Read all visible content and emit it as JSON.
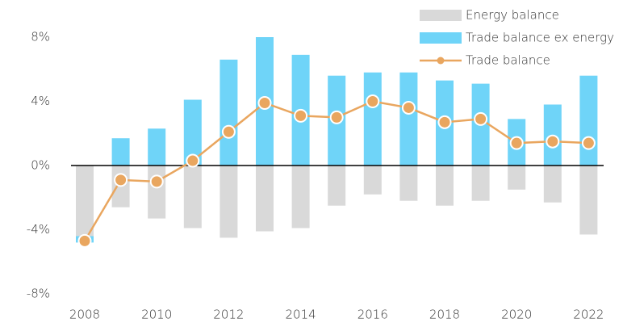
{
  "chart_data": {
    "type": "bar_line",
    "categories": [
      "2008",
      null,
      "2010",
      null,
      "2012",
      null,
      "2014",
      null,
      "2016",
      null,
      "2018",
      null,
      "2020",
      null,
      "2022"
    ],
    "series": [
      {
        "name": "Energy balance",
        "type": "bar",
        "color": "#d9d9d9",
        "values": [
          -4.4,
          -2.6,
          -3.3,
          -3.9,
          -4.5,
          -4.1,
          -3.9,
          -2.5,
          -1.8,
          -2.2,
          -2.5,
          -2.2,
          -1.5,
          -2.3,
          -4.3
        ]
      },
      {
        "name": "Trade balance ex energy",
        "type": "bar",
        "color": "#6fd4f8",
        "values": [
          -0.4,
          1.7,
          2.3,
          4.1,
          6.6,
          8.0,
          6.9,
          5.6,
          5.8,
          5.8,
          5.3,
          5.1,
          2.9,
          3.8,
          5.6
        ]
      },
      {
        "name": "Trade balance",
        "type": "line",
        "color": "#e9a65f",
        "values": [
          -4.7,
          -0.9,
          -1.0,
          0.3,
          2.1,
          3.9,
          3.1,
          3.0,
          4.0,
          3.6,
          2.7,
          2.9,
          1.4,
          1.5,
          1.4
        ]
      }
    ],
    "stacked": true,
    "ylim": [
      -8.6,
      8.3
    ],
    "yticks": [
      {
        "value": -8,
        "label": "-8%"
      },
      {
        "value": -4,
        "label": "-4%"
      },
      {
        "value": 0,
        "label": "0%"
      },
      {
        "value": 4,
        "label": "4%"
      },
      {
        "value": 8,
        "label": "8%"
      }
    ],
    "legend": "top-right"
  }
}
